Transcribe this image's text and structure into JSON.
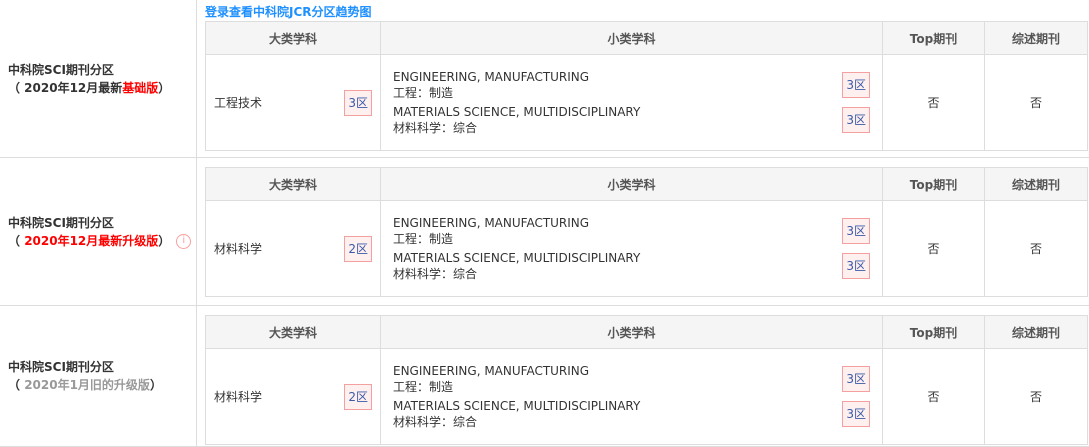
{
  "link": "登录查看中科院JCR分区趋势图",
  "headers": [
    "大类学科",
    "小类学科",
    "Top期刊",
    "综述期刊"
  ],
  "sections": [
    {
      "title": "中科院SCI期刊分区",
      "ver_prefix": "（ 2020年12月最新",
      "ver_highlight": "基础版",
      "ver_suffix": "）",
      "major": "工程技术",
      "major_zone": "3区",
      "subs": [
        {
          "en": "ENGINEERING, MANUFACTURING",
          "cn": "工程：制造",
          "zone": "3区"
        },
        {
          "en": "MATERIALS SCIENCE, MULTIDISCIPLINARY",
          "cn": "材料科学：综合",
          "zone": "3区"
        }
      ],
      "top": "否",
      "review": "否"
    },
    {
      "title": "中科院SCI期刊分区",
      "ver_prefix": "（ ",
      "ver_highlight": "2020年12月最新升级版",
      "ver_suffix": "）",
      "major": "材料科学",
      "major_zone": "2区",
      "subs": [
        {
          "en": "ENGINEERING, MANUFACTURING",
          "cn": "工程：制造",
          "zone": "3区"
        },
        {
          "en": "MATERIALS SCIENCE, MULTIDISCIPLINARY",
          "cn": "材料科学：综合",
          "zone": "3区"
        }
      ],
      "top": "否",
      "review": "否"
    },
    {
      "title": "中科院SCI期刊分区",
      "ver_prefix": "（ ",
      "ver_highlight": "2020年1月旧的升级版",
      "ver_suffix": "）",
      "major": "材料科学",
      "major_zone": "2区",
      "subs": [
        {
          "en": "ENGINEERING, MANUFACTURING",
          "cn": "工程：制造",
          "zone": "3区"
        },
        {
          "en": "MATERIALS SCIENCE, MULTIDISCIPLINARY",
          "cn": "材料科学：综合",
          "zone": "3区"
        }
      ],
      "top": "否",
      "review": "否"
    }
  ]
}
